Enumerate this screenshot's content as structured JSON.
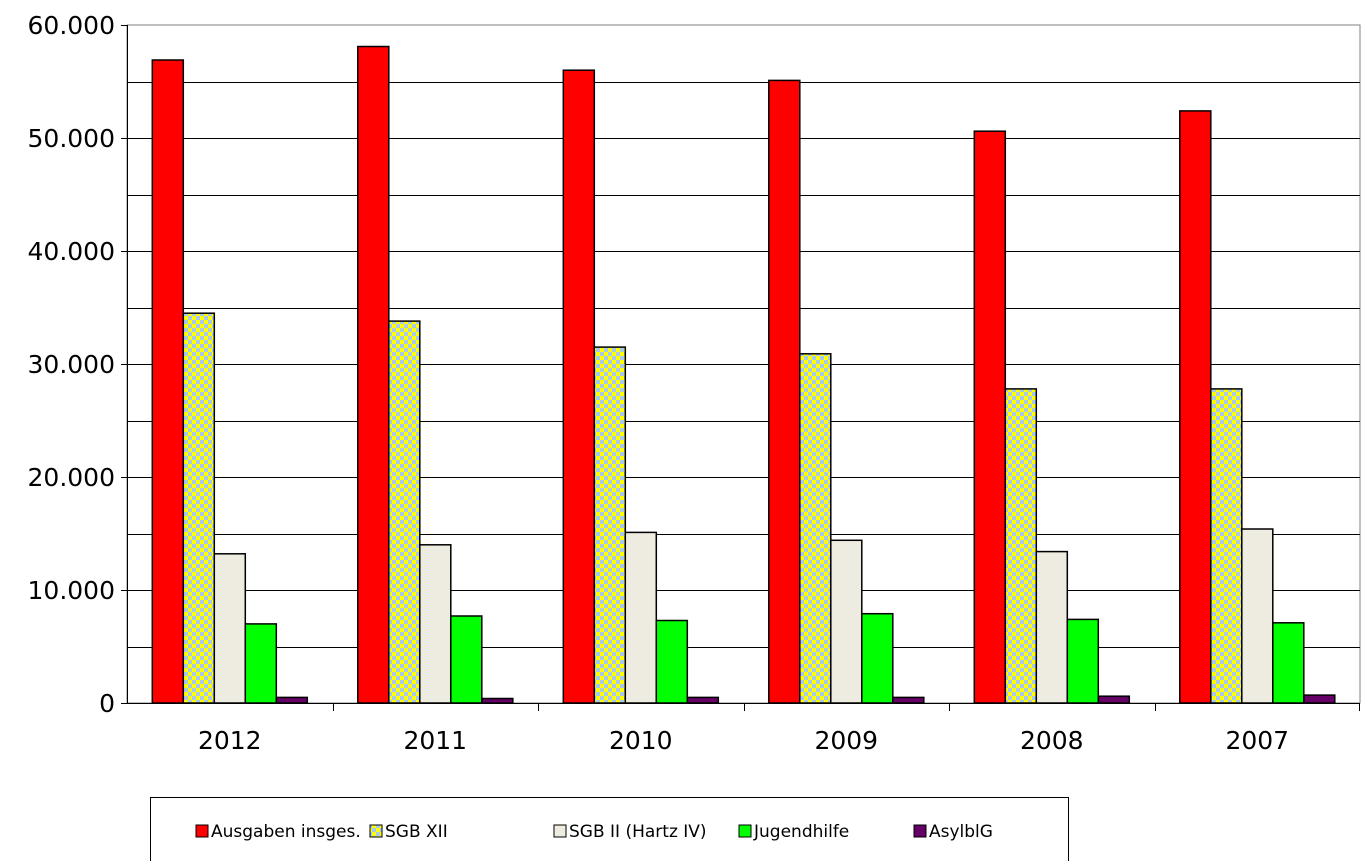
{
  "chart_data": {
    "type": "bar",
    "title": "",
    "xlabel": "",
    "ylabel": "",
    "categories": [
      "2012",
      "2011",
      "2010",
      "2009",
      "2008",
      "2007"
    ],
    "ylim": [
      0,
      60000
    ],
    "yticks": [
      0,
      10000,
      20000,
      30000,
      40000,
      50000,
      60000
    ],
    "ytick_labels": [
      "0",
      "10.000",
      "20.000",
      "30.000",
      "40.000",
      "50.000",
      "60.000"
    ],
    "grid": "horizontal",
    "legend_position": "bottom",
    "series": [
      {
        "name": "Ausgaben insges.",
        "color": "#ff0000",
        "pattern": "solid",
        "values": [
          56900,
          58100,
          56000,
          55100,
          50600,
          52400
        ]
      },
      {
        "name": "SGB XII",
        "color": "#ffff00",
        "pattern": "checker",
        "values": [
          34500,
          33800,
          31500,
          30900,
          27800,
          27800
        ]
      },
      {
        "name": "SGB II (Hartz IV)",
        "color": "#eeebe1",
        "pattern": "solid",
        "values": [
          13200,
          14000,
          15100,
          14400,
          13400,
          15400
        ]
      },
      {
        "name": "Jugendhilfe",
        "color": "#00ff00",
        "pattern": "solid",
        "values": [
          7000,
          7700,
          7300,
          7900,
          7400,
          7100
        ]
      },
      {
        "name": "AsylblG",
        "color": "#660066",
        "pattern": "solid",
        "values": [
          500,
          400,
          500,
          500,
          600,
          700
        ]
      }
    ]
  }
}
